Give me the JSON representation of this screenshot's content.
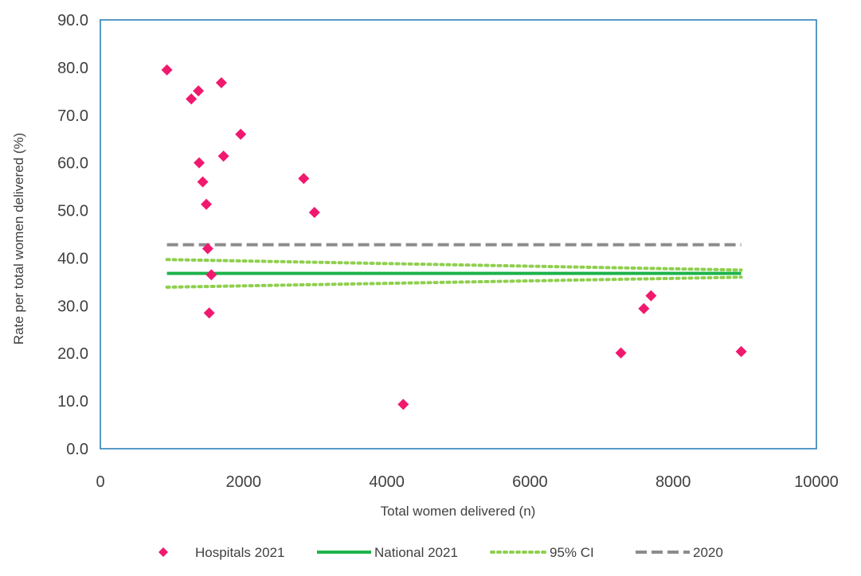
{
  "chart_data": {
    "type": "scatter",
    "title": "",
    "xlabel": "Total women delivered (n)",
    "ylabel": "Rate per total women delivered (%)",
    "xlim": [
      0,
      10000
    ],
    "ylim": [
      0,
      90
    ],
    "x_ticks": [
      "0",
      "2000",
      "4000",
      "6000",
      "8000",
      "10000"
    ],
    "y_ticks": [
      "0.0",
      "10.0",
      "20.0",
      "30.0",
      "40.0",
      "50.0",
      "60.0",
      "70.0",
      "80.0",
      "90.0"
    ],
    "grid": false,
    "legend_position": "bottom",
    "series": [
      {
        "name": "Hospitals 2021",
        "kind": "scatter",
        "color": "#f0196e",
        "marker": "diamond",
        "points": [
          {
            "x": 930,
            "y": 79.5
          },
          {
            "x": 1270,
            "y": 73.4
          },
          {
            "x": 1370,
            "y": 75.1
          },
          {
            "x": 1690,
            "y": 76.8
          },
          {
            "x": 1960,
            "y": 66.0
          },
          {
            "x": 1720,
            "y": 61.4
          },
          {
            "x": 1380,
            "y": 60.0
          },
          {
            "x": 1430,
            "y": 56.0
          },
          {
            "x": 1480,
            "y": 51.3
          },
          {
            "x": 2840,
            "y": 56.7
          },
          {
            "x": 2990,
            "y": 49.6
          },
          {
            "x": 1500,
            "y": 42.0
          },
          {
            "x": 1550,
            "y": 36.5
          },
          {
            "x": 1520,
            "y": 28.5
          },
          {
            "x": 4230,
            "y": 9.3
          },
          {
            "x": 7270,
            "y": 20.1
          },
          {
            "x": 7590,
            "y": 29.4
          },
          {
            "x": 7690,
            "y": 32.1
          },
          {
            "x": 8950,
            "y": 20.4
          }
        ]
      },
      {
        "name": "National 2021",
        "kind": "line",
        "style": "solid",
        "color": "#1db34a",
        "points": [
          {
            "x": 930,
            "y": 36.8
          },
          {
            "x": 8950,
            "y": 36.8
          }
        ]
      },
      {
        "name": "95% CI",
        "kind": "line",
        "style": "dotted",
        "color": "#8fcf4e",
        "lines": [
          [
            {
              "x": 930,
              "y": 39.7
            },
            {
              "x": 8950,
              "y": 37.5
            }
          ],
          [
            {
              "x": 930,
              "y": 33.9
            },
            {
              "x": 8950,
              "y": 36.0
            }
          ]
        ]
      },
      {
        "name": "2020",
        "kind": "line",
        "style": "dashed",
        "color": "#8c8c8c",
        "points": [
          {
            "x": 930,
            "y": 42.8
          },
          {
            "x": 8950,
            "y": 42.8
          }
        ]
      }
    ],
    "colors": {
      "plot_border": "#1f78b4",
      "text": "#404040"
    }
  }
}
